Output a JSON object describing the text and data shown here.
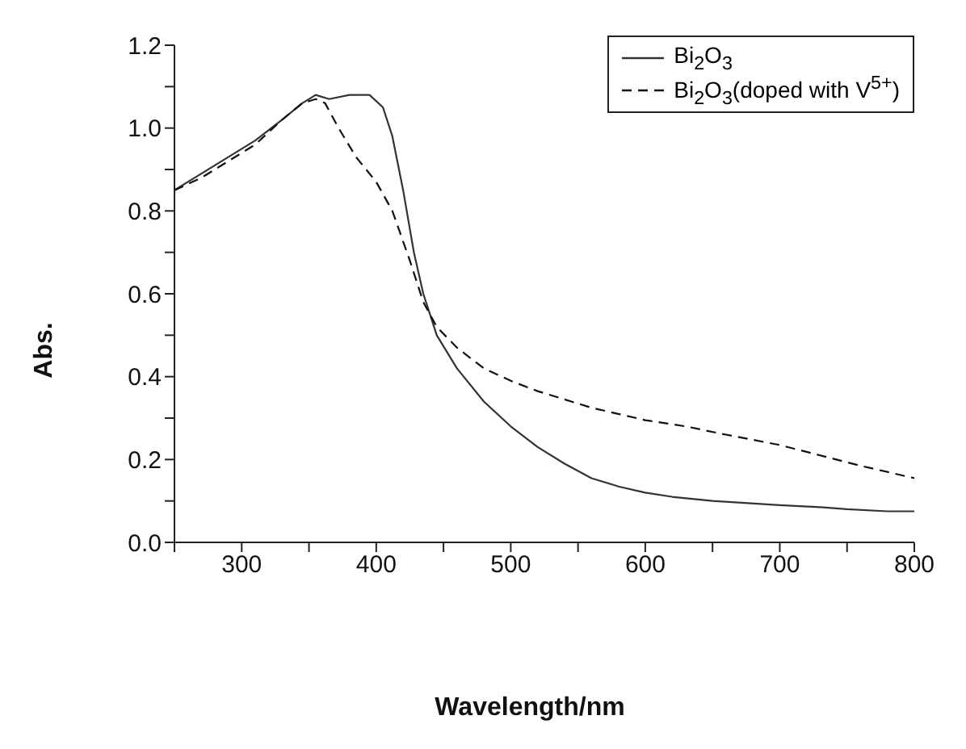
{
  "chart_data": {
    "type": "line",
    "xlabel": "Wavelength/nm",
    "ylabel": "Abs.",
    "xlim": [
      250,
      800
    ],
    "xticks": [
      {
        "value": 250,
        "label": null
      },
      300,
      {
        "value": 350,
        "label": null
      },
      400,
      {
        "value": 450,
        "label": null
      },
      500,
      {
        "value": 550,
        "label": null
      },
      600,
      {
        "value": 650,
        "label": null
      },
      700,
      {
        "value": 750,
        "label": null
      },
      800
    ],
    "ylim": [
      0,
      1.2
    ],
    "yticks": [
      "0.0",
      {
        "value": 0.1,
        "label": null
      },
      0.2,
      {
        "value": 0.3,
        "label": null
      },
      0.4,
      {
        "value": 0.5,
        "label": null
      },
      0.6,
      {
        "value": 0.7,
        "label": null
      },
      0.8,
      {
        "value": 0.9,
        "label": null
      },
      "1.0",
      {
        "value": 1.1,
        "label": null
      },
      1.2
    ],
    "grid": false,
    "legend": "top right",
    "marker": "none",
    "series": [
      {
        "name": "Bi$_{2}$O$_{3}$",
        "color": "#333333",
        "line_style": "solid",
        "x": [
          250,
          270,
          290,
          310,
          330,
          345,
          355,
          365,
          380,
          395,
          405,
          412,
          420,
          428,
          435,
          445,
          460,
          480,
          500,
          520,
          540,
          560,
          580,
          600,
          620,
          650,
          700,
          730,
          750,
          780,
          800
        ],
        "values": [
          0.85,
          0.89,
          0.93,
          0.97,
          1.02,
          1.06,
          1.08,
          1.07,
          1.08,
          1.08,
          1.05,
          0.98,
          0.85,
          0.7,
          0.6,
          0.5,
          0.42,
          0.34,
          0.28,
          0.23,
          0.19,
          0.155,
          0.135,
          0.12,
          0.11,
          0.1,
          0.09,
          0.085,
          0.08,
          0.075,
          0.075
        ]
      },
      {
        "name": "Bi$_{2}$O$_{3}$(doped with V$^{5+}$)",
        "color": "#111111",
        "line_style": "dashed",
        "x": [
          250,
          270,
          290,
          310,
          330,
          345,
          355,
          362,
          372,
          385,
          400,
          412,
          425,
          435,
          445,
          460,
          480,
          500,
          520,
          540,
          560,
          580,
          600,
          630,
          660,
          700,
          730,
          760,
          800
        ],
        "values": [
          0.85,
          0.88,
          0.92,
          0.96,
          1.02,
          1.06,
          1.07,
          1.06,
          1.0,
          0.93,
          0.87,
          0.8,
          0.68,
          0.58,
          0.52,
          0.47,
          0.42,
          0.39,
          0.365,
          0.345,
          0.325,
          0.31,
          0.295,
          0.28,
          0.26,
          0.235,
          0.21,
          0.185,
          0.155
        ]
      }
    ]
  }
}
